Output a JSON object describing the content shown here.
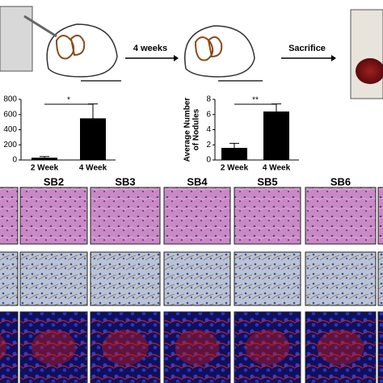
{
  "chart_data": [
    {
      "type": "bar",
      "categories": [
        "2 Week",
        "4 Week"
      ],
      "values": [
        30,
        550
      ],
      "errors": [
        15,
        190
      ],
      "color": "#000000",
      "ylim": [
        0,
        800
      ],
      "yticks": [
        0,
        200,
        400,
        600,
        800
      ],
      "annotation": "*"
    },
    {
      "type": "bar",
      "y_label": [
        "Average Number",
        "of Nodules"
      ],
      "categories": [
        "2 Week",
        "4 Week"
      ],
      "values": [
        1.6,
        6.4
      ],
      "errors": [
        0.6,
        1.0
      ],
      "color": "#000000",
      "ylim": [
        0,
        8
      ],
      "yticks": [
        0,
        2,
        4,
        6,
        8
      ],
      "annotation": "**"
    }
  ],
  "arrows": [
    "4 weeks",
    "Sacrifice"
  ],
  "panel_labels": [
    "SB2",
    "SB3",
    "SB4",
    "SB5",
    "SB6"
  ]
}
